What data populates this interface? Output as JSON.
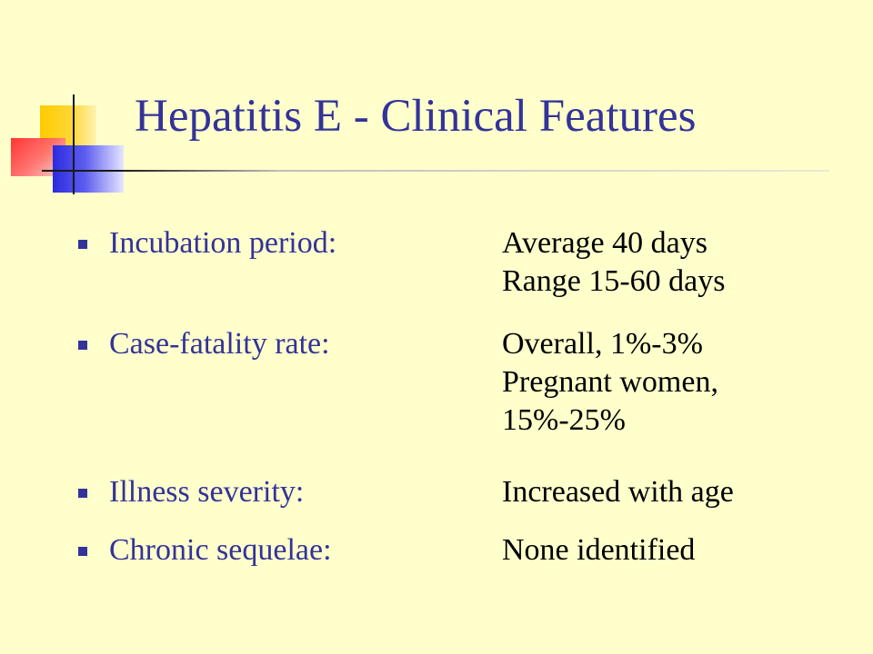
{
  "slide": {
    "title": "Hepatitis E - Clinical Features",
    "bullets": [
      {
        "label": "Incubation period:",
        "values": [
          "Average 40 days",
          "Range 15-60 days"
        ]
      },
      {
        "label": "Case-fatality rate:",
        "values": [
          "Overall, 1%-3%",
          "Pregnant women,",
          "15%-25%"
        ]
      },
      {
        "label": "Illness severity:",
        "values": [
          "Increased with age"
        ]
      },
      {
        "label": "Chronic sequelae:",
        "values": [
          "None identified"
        ]
      }
    ]
  },
  "colors": {
    "background": "#FFFFCC",
    "title": "#333399",
    "label": "#333399",
    "value": "#000000",
    "bullet": "#333399"
  },
  "icons": {
    "logo": "colored-squares-logo",
    "bullet": "square-bullet-icon"
  }
}
